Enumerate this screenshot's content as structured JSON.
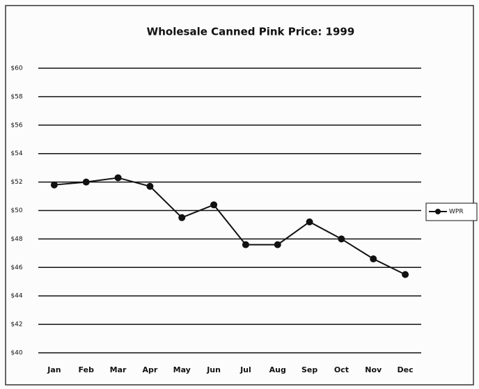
{
  "chart_data": {
    "type": "line",
    "title": "Wholesale Canned Pink Price: 1999",
    "categories": [
      "Jan",
      "Feb",
      "Mar",
      "Apr",
      "May",
      "Jun",
      "Jul",
      "Aug",
      "Sep",
      "Oct",
      "Nov",
      "Dec"
    ],
    "series": [
      {
        "name": "WPR",
        "color": "#111111",
        "values": [
          51.8,
          52.0,
          52.3,
          51.7,
          49.5,
          50.4,
          47.6,
          47.6,
          49.2,
          48.0,
          46.6,
          45.5
        ]
      }
    ],
    "ylim": [
      40,
      60
    ],
    "yticks": [
      {
        "value": 40,
        "label": "$40"
      },
      {
        "value": 42,
        "label": "$42"
      },
      {
        "value": 44,
        "label": "$44"
      },
      {
        "value": 46,
        "label": "$46"
      },
      {
        "value": 48,
        "label": "$48"
      },
      {
        "value": 50,
        "label": "$50"
      },
      {
        "value": 52,
        "label": "$52"
      },
      {
        "value": 54,
        "label": "$54"
      },
      {
        "value": 56,
        "label": "$56"
      },
      {
        "value": 58,
        "label": "$58"
      },
      {
        "value": 60,
        "label": "$60"
      }
    ],
    "grid": true,
    "legend": "right"
  }
}
